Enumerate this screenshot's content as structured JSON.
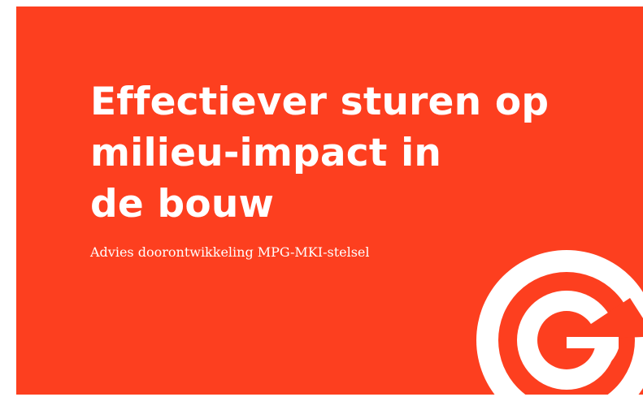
{
  "cover": {
    "title_lines": [
      "Effectiever sturen op",
      "milieu-impact in",
      "de bouw"
    ],
    "subtitle": "Advies doorontwikkeling MPG-MKI-stelsel",
    "background_color": "#fd3f1f",
    "text_color": "#ffffff",
    "logo_icon": "g-logo-icon"
  }
}
